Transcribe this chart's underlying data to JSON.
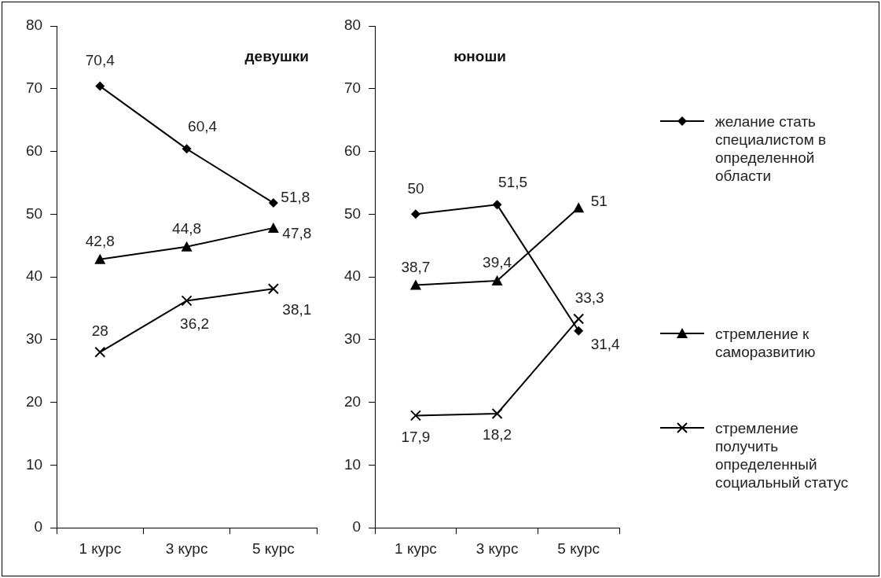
{
  "chart_data": [
    {
      "type": "line",
      "title": "девушки",
      "categories": [
        "1 курс",
        "3 курс",
        "5 курс"
      ],
      "ylim": [
        0,
        80
      ],
      "yticks": [
        0,
        10,
        20,
        30,
        40,
        50,
        60,
        70,
        80
      ],
      "grid": false,
      "legend": false,
      "series": [
        {
          "color": "#000000",
          "marker": "diamond",
          "values": [
            70.4,
            60.4,
            51.8
          ],
          "value_labels": [
            "70,4",
            "60,4",
            "51,8"
          ]
        },
        {
          "color": "#000000",
          "marker": "triangle",
          "values": [
            42.8,
            44.8,
            47.8
          ],
          "value_labels": [
            "42,8",
            "44,8",
            "47,8"
          ]
        },
        {
          "color": "#000000",
          "marker": "cross",
          "values": [
            28,
            36.2,
            38.1
          ],
          "value_labels": [
            "28",
            "36,2",
            "38,1"
          ]
        }
      ]
    },
    {
      "type": "line",
      "title": "юноши",
      "categories": [
        "1 курс",
        "3 курс",
        "5 курс"
      ],
      "ylim": [
        0,
        80
      ],
      "yticks": [
        0,
        10,
        20,
        30,
        40,
        50,
        60,
        70,
        80
      ],
      "grid": false,
      "legend": "right",
      "series": [
        {
          "name": "желание стать специалистом в определенной области",
          "color": "#000000",
          "marker": "diamond",
          "values": [
            50,
            51.5,
            31.4
          ],
          "value_labels": [
            "50",
            "51,5",
            "31,4"
          ]
        },
        {
          "name": "стремление к саморазвитию",
          "color": "#000000",
          "marker": "triangle",
          "values": [
            38.7,
            39.4,
            51
          ],
          "value_labels": [
            "38,7",
            "39,4",
            "51"
          ]
        },
        {
          "name": "стремление получить определенный социальный статус",
          "color": "#000000",
          "marker": "cross",
          "values": [
            17.9,
            18.2,
            33.3
          ],
          "value_labels": [
            "17,9",
            "18,2",
            "33,3"
          ]
        }
      ]
    }
  ]
}
